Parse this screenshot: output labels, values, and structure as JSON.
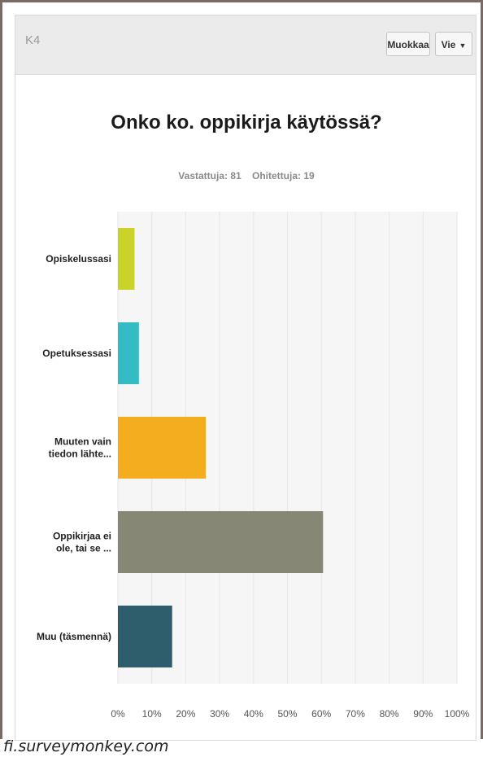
{
  "header": {
    "question_id": "K4",
    "edit_label": "Muokkaa",
    "export_label": "Vie",
    "export_caret": "▼"
  },
  "title": "Onko ko. oppikirja käytössä?",
  "stats": {
    "answered": "Vastattuja: 81",
    "skipped": "Ohitettuja: 19"
  },
  "source": "fi.surveymonkey.com",
  "colors": {
    "bar1": "#c9d32a",
    "bar2": "#33bcc3",
    "bar3": "#f5ad20",
    "bar4": "#878775",
    "bar5": "#2e5d6c",
    "gridline": "#e6e6e6",
    "plot_bg": "#f6f6f6"
  },
  "chart_data": {
    "type": "bar",
    "orientation": "horizontal",
    "categories": [
      [
        "Opiskelussasi"
      ],
      [
        "Opetuksessasi"
      ],
      [
        "Muuten vain",
        "tiedon lähte..."
      ],
      [
        "Oppikirjaa ei",
        "ole, tai se ..."
      ],
      [
        "Muu (täsmennä)"
      ]
    ],
    "values": [
      4.9,
      6.2,
      25.9,
      60.5,
      16.0
    ],
    "xlim": [
      0,
      100
    ],
    "xticks": [
      0,
      10,
      20,
      30,
      40,
      50,
      60,
      70,
      80,
      90,
      100
    ],
    "xtick_labels": [
      "0%",
      "10%",
      "20%",
      "30%",
      "40%",
      "50%",
      "60%",
      "70%",
      "80%",
      "90%",
      "100%"
    ],
    "grid": true
  }
}
